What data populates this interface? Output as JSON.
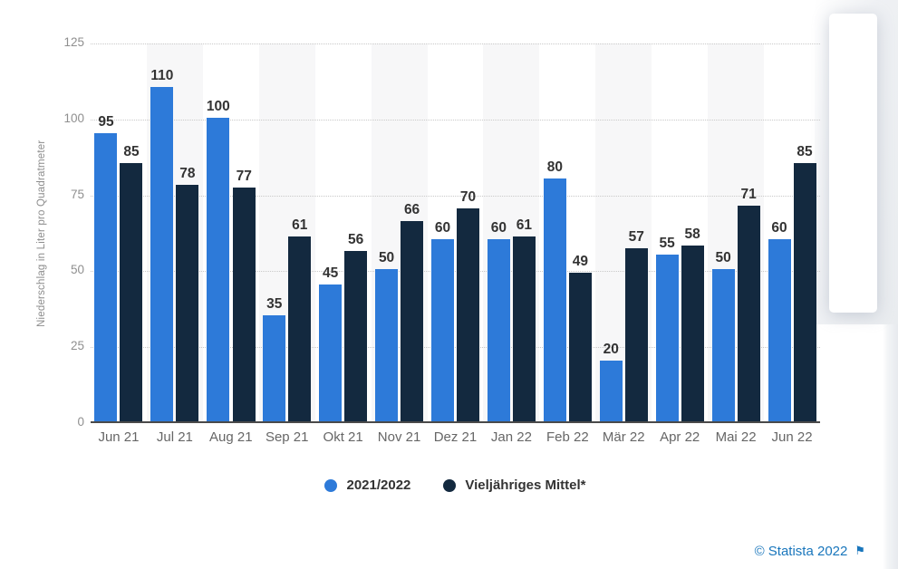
{
  "chart_data": {
    "type": "bar",
    "title": "",
    "xlabel": "",
    "ylabel": "Niederschlag in Liter pro Quadratmeter",
    "ylim": [
      0,
      125
    ],
    "yticks": [
      0,
      25,
      50,
      75,
      100,
      125
    ],
    "grid": "horizontal-dotted",
    "legend_position": "bottom-center",
    "column_stripes": "every second month shaded",
    "categories": [
      "Jun 21",
      "Jul 21",
      "Aug 21",
      "Sep 21",
      "Okt 21",
      "Nov 21",
      "Dez 21",
      "Jan 22",
      "Feb 22",
      "Mär 22",
      "Apr 22",
      "Mai 22",
      "Jun 22"
    ],
    "series": [
      {
        "name": "2021/2022",
        "color": "#2d7ad9",
        "values": [
          95,
          110,
          100,
          35,
          45,
          50,
          60,
          60,
          80,
          20,
          55,
          50,
          60
        ]
      },
      {
        "name": "Vieljähriges Mittel*",
        "color": "#13293f",
        "values": [
          85,
          78,
          77,
          61,
          56,
          66,
          70,
          61,
          49,
          57,
          58,
          71,
          85
        ]
      }
    ]
  },
  "footer": {
    "attribution": "© Statista 2022",
    "flag_icon": "⚑",
    "color": "#1976bc"
  },
  "style": {
    "stripe_color": "#f7f7f8",
    "gridline_color": "#c9c9c9",
    "axis_line_color": "#4a4a4a",
    "tick_label_color": "#8f8f8f",
    "month_label_color": "#666666",
    "value_label_color": "#333333"
  }
}
